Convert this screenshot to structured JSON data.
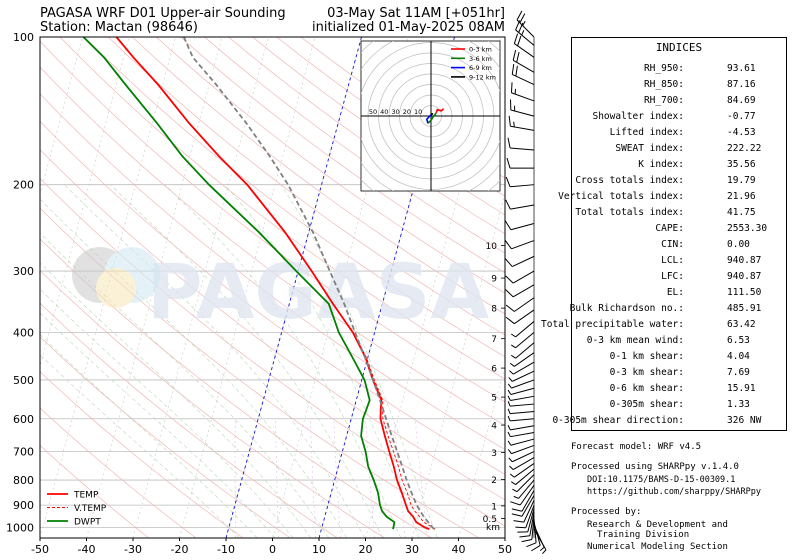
{
  "header": {
    "title_left": "PAGASA WRF D01 Upper-air Sounding",
    "station": "Station: Mactan (98646)",
    "valid_time": "03-May Sat 11AM [+051hr]",
    "init_time": "initialized 01-May-2025 08AM"
  },
  "watermark": "PAGASA",
  "chart_data": {
    "type": "line",
    "subtype": "skew-t log-p",
    "x_range": [
      -50,
      50
    ],
    "x_ticks": [
      "-50",
      "-40",
      "-30",
      "-20",
      "-10",
      "0",
      "10",
      "20",
      "30",
      "40",
      "50"
    ],
    "p_range": [
      1050,
      100
    ],
    "p_ticks": [
      {
        "p": 100,
        "label": "100"
      },
      {
        "p": 200,
        "label": "200"
      },
      {
        "p": 300,
        "label": "300"
      },
      {
        "p": 400,
        "label": "400"
      },
      {
        "p": 500,
        "label": "500"
      },
      {
        "p": 600,
        "label": "600"
      },
      {
        "p": 700,
        "label": "700"
      },
      {
        "p": 800,
        "label": "800"
      },
      {
        "p": 900,
        "label": "900"
      },
      {
        "p": 1000,
        "label": "1000"
      }
    ],
    "height_ticks": [
      {
        "p": 958,
        "label": "0.5"
      },
      {
        "p": 903,
        "label": "1"
      },
      {
        "p": 798,
        "label": "2"
      },
      {
        "p": 703,
        "label": "3"
      },
      {
        "p": 618,
        "label": "4"
      },
      {
        "p": 542,
        "label": "5"
      },
      {
        "p": 473,
        "label": "6"
      },
      {
        "p": 412,
        "label": "7"
      },
      {
        "p": 357,
        "label": "8"
      },
      {
        "p": 310,
        "label": "9"
      },
      {
        "p": 266,
        "label": "10"
      }
    ],
    "height_unit": "km",
    "legend": [
      "TEMP",
      "V.TEMP",
      "DWPT"
    ],
    "legend_position": "lower-left",
    "series": [
      {
        "name": "TEMP",
        "color": "#ff0000",
        "style": "solid",
        "points": [
          [
            1007,
            33.2
          ],
          [
            1000,
            32.2
          ],
          [
            975,
            30.0
          ],
          [
            950,
            29.0
          ],
          [
            925,
            27.6
          ],
          [
            900,
            26.8
          ],
          [
            850,
            25.2
          ],
          [
            800,
            23.4
          ],
          [
            750,
            21.9
          ],
          [
            700,
            20.1
          ],
          [
            650,
            18.2
          ],
          [
            600,
            16.3
          ],
          [
            575,
            15.8
          ],
          [
            550,
            15.4
          ],
          [
            500,
            12.4
          ],
          [
            450,
            9.5
          ],
          [
            400,
            5.3
          ],
          [
            350,
            -0.6
          ],
          [
            300,
            -7.1
          ],
          [
            250,
            -15.1
          ],
          [
            200,
            -26.0
          ],
          [
            175,
            -33.7
          ],
          [
            150,
            -42.0
          ],
          [
            125,
            -51.0
          ],
          [
            110,
            -57.9
          ],
          [
            100,
            -62.7
          ]
        ]
      },
      {
        "name": "V.TEMP",
        "color": "#ff0000",
        "style": "dashed",
        "points": [
          [
            1007,
            34.5
          ],
          [
            1000,
            33.9
          ],
          [
            975,
            31.6
          ],
          [
            950,
            30.4
          ],
          [
            925,
            29.0
          ],
          [
            900,
            27.9
          ],
          [
            850,
            26.4
          ],
          [
            800,
            24.5
          ],
          [
            750,
            22.9
          ],
          [
            700,
            21.0
          ],
          [
            650,
            18.9
          ],
          [
            600,
            16.8
          ],
          [
            575,
            16.2
          ],
          [
            550,
            15.7
          ],
          [
            500,
            12.7
          ],
          [
            450,
            9.7
          ],
          [
            400,
            5.4
          ],
          [
            350,
            -0.6
          ],
          [
            300,
            -7.1
          ],
          [
            250,
            -15.1
          ],
          [
            200,
            -26.0
          ],
          [
            175,
            -33.7
          ],
          [
            150,
            -42.0
          ],
          [
            125,
            -51.0
          ],
          [
            110,
            -57.9
          ],
          [
            100,
            -62.7
          ]
        ]
      },
      {
        "name": "DWPT",
        "color": "#008000",
        "style": "solid",
        "points": [
          [
            1007,
            25.4
          ],
          [
            1000,
            25.4
          ],
          [
            975,
            25.3
          ],
          [
            950,
            23.3
          ],
          [
            925,
            22.0
          ],
          [
            900,
            21.2
          ],
          [
            850,
            20.1
          ],
          [
            800,
            18.4
          ],
          [
            750,
            16.4
          ],
          [
            700,
            15.0
          ],
          [
            650,
            13.1
          ],
          [
            600,
            12.5
          ],
          [
            575,
            12.7
          ],
          [
            550,
            12.9
          ],
          [
            500,
            10.6
          ],
          [
            450,
            6.7
          ],
          [
            400,
            2.3
          ],
          [
            350,
            -1.5
          ],
          [
            300,
            -10.4
          ],
          [
            250,
            -20.7
          ],
          [
            200,
            -34.2
          ],
          [
            175,
            -41.6
          ],
          [
            150,
            -48.9
          ],
          [
            125,
            -58.0
          ],
          [
            110,
            -64.2
          ],
          [
            100,
            -69.8
          ]
        ]
      },
      {
        "name": "parcel",
        "color": "#808080",
        "style": "dashed",
        "points": [
          [
            1007,
            34.2
          ],
          [
            950,
            31.3
          ],
          [
            900,
            29.1
          ],
          [
            850,
            27.3
          ],
          [
            800,
            25.5
          ],
          [
            750,
            23.7
          ],
          [
            700,
            21.8
          ],
          [
            650,
            19.7
          ],
          [
            600,
            17.5
          ],
          [
            550,
            15.1
          ],
          [
            500,
            12.4
          ],
          [
            450,
            9.4
          ],
          [
            400,
            5.8
          ],
          [
            350,
            1.8
          ],
          [
            300,
            -3.2
          ],
          [
            250,
            -9.1
          ],
          [
            200,
            -17.2
          ],
          [
            175,
            -22.8
          ],
          [
            150,
            -29.7
          ],
          [
            125,
            -38.5
          ],
          [
            110,
            -45.1
          ],
          [
            100,
            -48.2
          ]
        ]
      }
    ]
  },
  "hodograph": {
    "legend": [
      {
        "label": "0-3 km",
        "color": "#ff0000"
      },
      {
        "label": "3-6 km",
        "color": "#008000"
      },
      {
        "label": "6-9 km",
        "color": "#0000ff"
      },
      {
        "label": "9-12 km",
        "color": "#000000"
      }
    ],
    "ring_labels": [
      "50",
      "40",
      "30",
      "20",
      "10"
    ],
    "segments": [
      {
        "color": "#ff0000",
        "points": [
          [
            5,
            -3
          ],
          [
            6,
            -6
          ],
          [
            10,
            -5
          ],
          [
            12,
            -7
          ],
          [
            10,
            -5
          ]
        ]
      },
      {
        "color": "#008000",
        "points": [
          [
            5,
            -3
          ],
          [
            2,
            1
          ],
          [
            0,
            4
          ],
          [
            -3,
            7
          ]
        ]
      },
      {
        "color": "#0000ff",
        "points": [
          [
            -3,
            7
          ],
          [
            -4,
            3
          ],
          [
            -1,
            0
          ],
          [
            0,
            -1
          ]
        ]
      },
      {
        "color": "#000000",
        "points": [
          [
            0,
            -1
          ],
          [
            1,
            -2
          ],
          [
            2,
            -2
          ]
        ]
      }
    ]
  },
  "indices": {
    "title": "INDICES",
    "rows": [
      {
        "label": "RH_950:",
        "value": "93.61"
      },
      {
        "label": "RH_850:",
        "value": "87.16"
      },
      {
        "label": "RH_700:",
        "value": "84.69"
      },
      {
        "label": "Showalter index:",
        "value": "-0.77"
      },
      {
        "label": "Lifted index:",
        "value": "-4.53"
      },
      {
        "label": "SWEAT index:",
        "value": "222.22"
      },
      {
        "label": "K index:",
        "value": "35.56"
      },
      {
        "label": "Cross totals index:",
        "value": "19.79"
      },
      {
        "label": "Vertical totals index:",
        "value": "21.96"
      },
      {
        "label": "Total totals index:",
        "value": "41.75"
      },
      {
        "label": "CAPE:",
        "value": "2553.30"
      },
      {
        "label": "CIN:",
        "value": "0.00"
      },
      {
        "label": "LCL:",
        "value": "940.87"
      },
      {
        "label": "LFC:",
        "value": "940.87"
      },
      {
        "label": "EL:",
        "value": "111.50"
      },
      {
        "label": "Bulk Richardson no.:",
        "value": "485.91"
      },
      {
        "label": "Total precipitable water:",
        "value": "63.42"
      },
      {
        "label": "0-3 km mean wind:",
        "value": "6.53"
      },
      {
        "label": "0-1 km shear:",
        "value": "4.04"
      },
      {
        "label": "0-3 km shear:",
        "value": "7.69"
      },
      {
        "label": "0-6 km shear:",
        "value": "15.91"
      },
      {
        "label": "0-305m shear:",
        "value": "1.33"
      },
      {
        "label": "0-305m shear direction:",
        "value": "326 NW"
      }
    ]
  },
  "footer": {
    "model": "Forecast model: WRF v4.5",
    "processed": "Processed using SHARPpy v.1.4.0",
    "doi": "DOI:10.1175/BAMS-D-15-00309.1",
    "url": "https://github.com/sharppy/SHARPpy",
    "processed_by": "Processed by:",
    "division1": "Research & Development and",
    "division2": "Training Division",
    "section": "Numerical Modeling Section"
  },
  "wind_barbs": [
    {
      "p": 1007,
      "dir": 150,
      "spd": 8
    },
    {
      "p": 990,
      "dir": 155,
      "spd": 9
    },
    {
      "p": 975,
      "dir": 165,
      "spd": 10
    },
    {
      "p": 960,
      "dir": 175,
      "spd": 11
    },
    {
      "p": 945,
      "dir": 185,
      "spd": 12
    },
    {
      "p": 930,
      "dir": 190,
      "spd": 12
    },
    {
      "p": 915,
      "dir": 195,
      "spd": 13
    },
    {
      "p": 900,
      "dir": 200,
      "spd": 13
    },
    {
      "p": 880,
      "dir": 205,
      "spd": 13
    },
    {
      "p": 860,
      "dir": 210,
      "spd": 12
    },
    {
      "p": 840,
      "dir": 210,
      "spd": 11
    },
    {
      "p": 820,
      "dir": 215,
      "spd": 10
    },
    {
      "p": 800,
      "dir": 220,
      "spd": 9
    },
    {
      "p": 780,
      "dir": 225,
      "spd": 9
    },
    {
      "p": 760,
      "dir": 230,
      "spd": 8
    },
    {
      "p": 740,
      "dir": 235,
      "spd": 8
    },
    {
      "p": 720,
      "dir": 240,
      "spd": 8
    },
    {
      "p": 700,
      "dir": 245,
      "spd": 8
    },
    {
      "p": 680,
      "dir": 250,
      "spd": 7
    },
    {
      "p": 660,
      "dir": 255,
      "spd": 7
    },
    {
      "p": 640,
      "dir": 260,
      "spd": 7
    },
    {
      "p": 620,
      "dir": 260,
      "spd": 7
    },
    {
      "p": 600,
      "dir": 265,
      "spd": 8
    },
    {
      "p": 580,
      "dir": 265,
      "spd": 8
    },
    {
      "p": 560,
      "dir": 265,
      "spd": 8
    },
    {
      "p": 540,
      "dir": 260,
      "spd": 8
    },
    {
      "p": 520,
      "dir": 255,
      "spd": 8
    },
    {
      "p": 500,
      "dir": 250,
      "spd": 8
    },
    {
      "p": 480,
      "dir": 245,
      "spd": 9
    },
    {
      "p": 460,
      "dir": 240,
      "spd": 9
    },
    {
      "p": 440,
      "dir": 235,
      "spd": 9
    },
    {
      "p": 420,
      "dir": 230,
      "spd": 9
    },
    {
      "p": 400,
      "dir": 230,
      "spd": 9
    },
    {
      "p": 380,
      "dir": 230,
      "spd": 9
    },
    {
      "p": 360,
      "dir": 235,
      "spd": 10
    },
    {
      "p": 340,
      "dir": 235,
      "spd": 10
    },
    {
      "p": 320,
      "dir": 240,
      "spd": 10
    },
    {
      "p": 300,
      "dir": 240,
      "spd": 10
    },
    {
      "p": 280,
      "dir": 245,
      "spd": 10
    },
    {
      "p": 260,
      "dir": 250,
      "spd": 11
    },
    {
      "p": 240,
      "dir": 255,
      "spd": 11
    },
    {
      "p": 220,
      "dir": 260,
      "spd": 12
    },
    {
      "p": 200,
      "dir": 265,
      "spd": 12
    },
    {
      "p": 185,
      "dir": 270,
      "spd": 13
    },
    {
      "p": 170,
      "dir": 275,
      "spd": 14
    },
    {
      "p": 155,
      "dir": 280,
      "spd": 15
    },
    {
      "p": 145,
      "dir": 285,
      "spd": 16
    },
    {
      "p": 135,
      "dir": 290,
      "spd": 18
    },
    {
      "p": 125,
      "dir": 295,
      "spd": 20
    },
    {
      "p": 118,
      "dir": 300,
      "spd": 22
    },
    {
      "p": 110,
      "dir": 305,
      "spd": 24
    },
    {
      "p": 104,
      "dir": 310,
      "spd": 26
    },
    {
      "p": 100,
      "dir": 315,
      "spd": 28
    }
  ]
}
